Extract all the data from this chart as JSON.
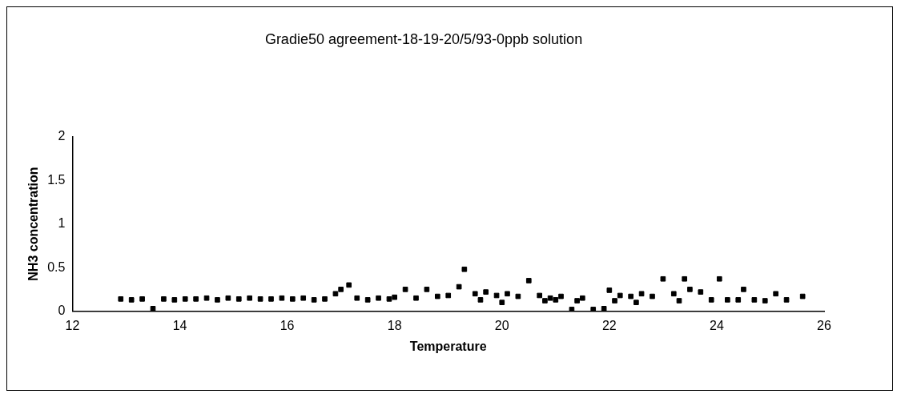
{
  "chart_data": {
    "type": "scatter",
    "title": "Gradie50 agreement-18-19-20/5/93-0ppb solution",
    "xlabel": "Temperature",
    "ylabel": "NH3 concentration",
    "xlim": [
      12,
      26
    ],
    "xticks": [
      12,
      14,
      16,
      18,
      20,
      22,
      24,
      26
    ],
    "ylim": [
      0,
      2
    ],
    "yticks": [
      0,
      0.5,
      1,
      1.5,
      2
    ],
    "grid": false,
    "legend": false,
    "marker": "square",
    "series": [
      {
        "color": "#000000",
        "x": [
          12.9,
          13.1,
          13.3,
          13.5,
          13.7,
          13.9,
          14.1,
          14.3,
          14.5,
          14.7,
          14.9,
          15.1,
          15.3,
          15.5,
          15.7,
          15.9,
          16.1,
          16.3,
          16.5,
          16.7,
          16.9,
          17.0,
          17.15,
          17.3,
          17.5,
          17.7,
          17.9,
          18.0,
          18.2,
          18.4,
          18.6,
          18.8,
          19.0,
          19.2,
          19.3,
          19.5,
          19.7,
          19.9,
          20.1,
          20.3,
          20.5,
          20.7,
          20.9,
          21.1,
          21.3,
          21.4,
          21.5,
          21.7,
          21.9,
          22.0,
          22.2,
          22.4,
          22.6,
          22.8,
          23.0,
          23.2,
          23.4,
          23.5,
          23.7,
          23.9,
          24.05,
          24.2,
          24.4,
          24.5,
          24.7,
          24.9,
          25.1,
          25.3,
          25.6,
          19.6,
          20.0,
          20.8,
          21.0,
          22.1,
          22.5,
          23.3
        ],
        "values": [
          0.14,
          0.13,
          0.14,
          0.03,
          0.14,
          0.13,
          0.14,
          0.14,
          0.15,
          0.13,
          0.15,
          0.14,
          0.15,
          0.14,
          0.14,
          0.15,
          0.14,
          0.15,
          0.13,
          0.14,
          0.2,
          0.25,
          0.3,
          0.15,
          0.13,
          0.15,
          0.14,
          0.16,
          0.25,
          0.15,
          0.25,
          0.17,
          0.18,
          0.28,
          0.48,
          0.2,
          0.22,
          0.18,
          0.2,
          0.17,
          0.35,
          0.18,
          0.15,
          0.17,
          0.02,
          0.12,
          0.15,
          0.02,
          0.03,
          0.24,
          0.18,
          0.17,
          0.2,
          0.17,
          0.37,
          0.2,
          0.37,
          0.25,
          0.22,
          0.13,
          0.37,
          0.13,
          0.13,
          0.25,
          0.13,
          0.12,
          0.2,
          0.13,
          0.17,
          0.13,
          0.1,
          0.12,
          0.13,
          0.12,
          0.1,
          0.12
        ]
      }
    ]
  }
}
